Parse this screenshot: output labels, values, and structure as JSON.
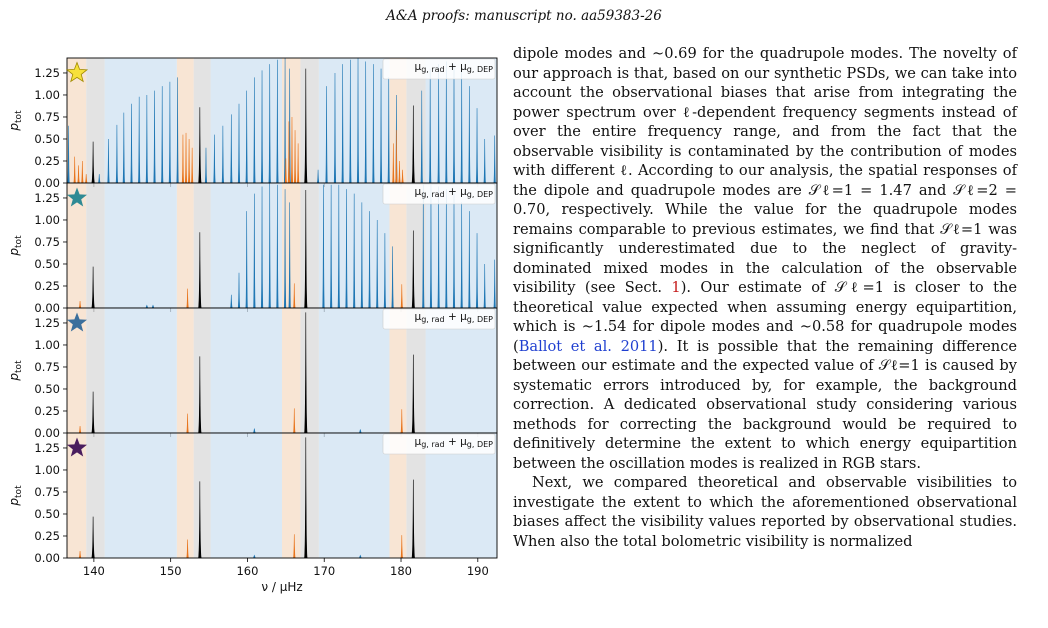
{
  "header": {
    "text": "A&A proofs: manuscript no. aa59383-26"
  },
  "figure": {
    "legend_label": "μg, rad + μg, DEP",
    "ylabel": "p_tot",
    "xlabel": "ν / μHz",
    "star_colors": [
      "#f7e03a",
      "#2f8a94",
      "#3b6f9c",
      "#4a1d5e"
    ],
    "colors": {
      "l0": "#000000",
      "l1": "#1f77b4",
      "l2": "#e8741c",
      "band_l0": "#d9d9d9",
      "band_l1": "#cfe2f2",
      "band_l2": "#f5dcc6"
    }
  },
  "chart_data": {
    "type": "line",
    "title": "",
    "xlabel": "ν / μHz",
    "ylabel": "p_tot",
    "xlim": [
      136.5,
      192.5
    ],
    "ylim": [
      0.0,
      1.42
    ],
    "xticks": [
      140,
      150,
      160,
      170,
      180,
      190
    ],
    "yticks": [
      0.0,
      0.25,
      0.5,
      0.75,
      1.0,
      1.25
    ],
    "grid": false,
    "legend_position": "top-right",
    "bands": {
      "l0": [
        [
          139.0,
          141.4
        ],
        [
          153.0,
          155.2
        ],
        [
          166.9,
          169.3
        ],
        [
          180.7,
          183.2
        ]
      ],
      "l1": [
        [
          141.4,
          150.8
        ],
        [
          155.2,
          164.5
        ],
        [
          169.3,
          178.5
        ],
        [
          183.2,
          192.5
        ]
      ],
      "l2": [
        [
          136.5,
          139.0
        ],
        [
          150.8,
          153.0
        ],
        [
          164.5,
          166.9
        ],
        [
          178.5,
          180.7
        ]
      ]
    },
    "panels": [
      {
        "legend": "μg, rad + μg, DEP",
        "series": [
          {
            "name": "ℓ=0",
            "x": [
              139.9,
              153.8,
              167.6,
              181.6
            ],
            "y": [
              0.47,
              0.86,
              1.3,
              0.88
            ]
          },
          {
            "name": "ℓ=1",
            "x": [
              136.7,
              140.7,
              141.9,
              143.0,
              143.9,
              144.9,
              145.9,
              146.9,
              147.9,
              148.9,
              149.9,
              150.9,
              154.6,
              155.7,
              156.8,
              157.9,
              158.9,
              159.9,
              160.9,
              161.9,
              162.9,
              163.9,
              164.9,
              165.5,
              169.2,
              170.3,
              171.4,
              172.4,
              173.4,
              174.4,
              175.4,
              176.4,
              177.4,
              178.4,
              179.4,
              182.7,
              183.8,
              184.9,
              185.9,
              186.9,
              187.9,
              188.9,
              189.9,
              190.9,
              192.2
            ],
            "y": [
              0.65,
              0.1,
              0.5,
              0.66,
              0.8,
              0.9,
              0.98,
              1.0,
              1.05,
              1.1,
              1.15,
              1.2,
              0.4,
              0.55,
              0.65,
              0.78,
              0.9,
              1.05,
              1.2,
              1.28,
              1.35,
              1.4,
              1.42,
              1.3,
              0.15,
              1.1,
              1.25,
              1.35,
              1.4,
              1.42,
              1.38,
              1.35,
              1.3,
              1.2,
              1.0,
              1.05,
              1.3,
              1.35,
              1.38,
              1.35,
              1.3,
              1.1,
              0.85,
              0.5,
              0.54
            ]
          },
          {
            "name": "ℓ=2",
            "x": [
              137.5,
              138.0,
              138.5,
              139.0,
              151.6,
              152.0,
              152.4,
              152.8,
              165.0,
              165.4,
              165.8,
              166.2,
              166.6,
              179.0,
              179.4,
              179.8,
              180.2
            ],
            "y": [
              0.3,
              0.2,
              0.25,
              0.1,
              0.55,
              0.57,
              0.5,
              0.4,
              0.28,
              0.7,
              0.75,
              0.6,
              0.45,
              0.45,
              0.6,
              0.25,
              0.15
            ]
          }
        ]
      },
      {
        "legend": "μg, rad + μg, DEP",
        "series": [
          {
            "name": "ℓ=0",
            "x": [
              139.9,
              153.8,
              167.6,
              181.6
            ],
            "y": [
              0.47,
              0.86,
              1.34,
              0.88
            ]
          },
          {
            "name": "ℓ=1",
            "x": [
              146.9,
              147.7,
              157.9,
              158.9,
              159.9,
              160.9,
              161.9,
              162.9,
              163.9,
              164.9,
              165.5,
              169.9,
              170.9,
              171.9,
              172.9,
              173.9,
              174.9,
              175.9,
              176.9,
              177.9,
              178.9,
              182.9,
              183.9,
              184.9,
              185.9,
              186.9,
              187.9,
              188.9,
              189.9,
              190.9,
              192.2
            ],
            "y": [
              0.03,
              0.03,
              0.15,
              0.4,
              1.1,
              1.3,
              1.38,
              1.42,
              1.4,
              1.35,
              1.2,
              1.4,
              1.4,
              1.4,
              1.35,
              1.3,
              1.2,
              1.1,
              1.0,
              0.85,
              0.7,
              1.4,
              1.4,
              1.38,
              1.35,
              1.3,
              1.2,
              1.1,
              0.85,
              0.5,
              0.55
            ]
          },
          {
            "name": "ℓ=2",
            "x": [
              138.2,
              152.2,
              166.1,
              180.1
            ],
            "y": [
              0.08,
              0.22,
              0.28,
              0.27
            ]
          }
        ]
      },
      {
        "legend": "μg, rad + μg, DEP",
        "series": [
          {
            "name": "ℓ=0",
            "x": [
              139.9,
              153.8,
              167.6,
              181.6
            ],
            "y": [
              0.47,
              0.87,
              1.37,
              0.89
            ]
          },
          {
            "name": "ℓ=1",
            "x": [
              160.9,
              174.7
            ],
            "y": [
              0.05,
              0.04
            ]
          },
          {
            "name": "ℓ=2",
            "x": [
              138.2,
              152.2,
              166.1,
              180.1
            ],
            "y": [
              0.08,
              0.22,
              0.28,
              0.27
            ]
          }
        ]
      },
      {
        "legend": "μg, rad + μg, DEP",
        "series": [
          {
            "name": "ℓ=0",
            "x": [
              139.9,
              153.8,
              167.6,
              181.6
            ],
            "y": [
              0.47,
              0.87,
              1.37,
              0.89
            ]
          },
          {
            "name": "ℓ=1",
            "x": [
              160.9,
              174.7
            ],
            "y": [
              0.03,
              0.03
            ]
          },
          {
            "name": "ℓ=2",
            "x": [
              138.2,
              152.2,
              166.1,
              180.1
            ],
            "y": [
              0.08,
              0.21,
              0.27,
              0.26
            ]
          }
        ]
      }
    ]
  },
  "body": {
    "p1_a": "dipole modes and ∼0.69 for the quadrupole modes. The novelty of our approach is that, based on our synthetic PSDs, we can take into account the observational biases that arise from integrating the power spectrum over ℓ-dependent frequency segments instead of over the entire frequency range, and from the fact that the observable visibility is contaminated by the contribution of modes with different ℓ. According to our analysis, the spatial responses of the dipole and quadrupole modes are 𝒮ℓ=1 = 1.47 and 𝒮ℓ=2 = 0.70, respectively. While the value for the quadrupole modes remains comparable to previous estimates, we find that 𝒮ℓ=1 was significantly underestimated due to the neglect of gravity-dominated mixed modes in the calculation of the observable visibility (see Sect. ",
    "p1_ref": "1",
    "p1_b": "). Our estimate of 𝒮ℓ=1 is closer to the theoretical value expected when assuming energy equipartition, which is ∼1.54 for dipole modes and ∼0.58 for quadrupole modes (",
    "p1_cite": "Ballot et al. 2011",
    "p1_c": "). It is possible that the remaining difference between our estimate and the expected value of 𝒮ℓ=1 is caused by systematic errors introduced by, for example, the background correction. A dedicated observational study considering various methods for correcting the background would be required to definitively determine the extent to which energy equipartition between the oscillation modes is realized in RGB stars.",
    "p2": "Next, we compared theoretical and observable visibilities to investigate the extent to which the aforementioned observational biases affect the visibility values reported by observational studies. When also the total bolometric visibility is normalized"
  }
}
